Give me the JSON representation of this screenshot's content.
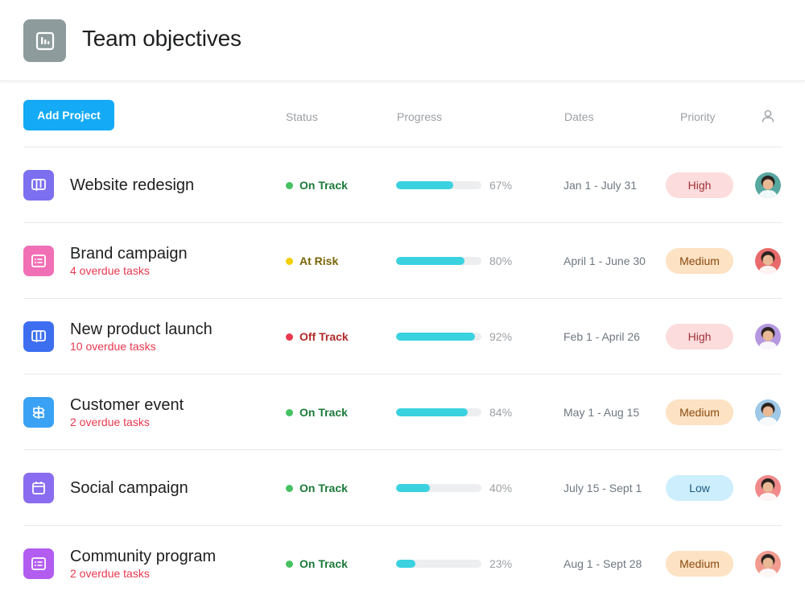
{
  "header": {
    "title": "Team objectives",
    "icon": "bar-chart-icon"
  },
  "toolbar": {
    "add_project_label": "Add Project",
    "columns": {
      "status": "Status",
      "progress": "Progress",
      "dates": "Dates",
      "priority": "Priority",
      "assignee_icon": "person-icon"
    }
  },
  "colors": {
    "accent": "#14aaf5",
    "on_track": "#2cb45f",
    "at_risk": "#f2cf00",
    "off_track": "#e8384f",
    "progress": "#3bd2e0"
  },
  "projects": [
    {
      "name": "Website redesign",
      "overdue": "",
      "icon": "board-icon",
      "icon_color": "#7c6ff0",
      "status": "On Track",
      "status_color": "#46c263",
      "status_text_color": "#1b7a3a",
      "progress": 0.67,
      "progress_label": "67%",
      "dates": "Jan 1 - July 31",
      "priority": "High",
      "priority_bg": "#fcdcdc",
      "priority_color": "#a0323a",
      "avatar_bg": "#57a8a1"
    },
    {
      "name": "Brand campaign",
      "overdue": "4 overdue tasks",
      "icon": "list-icon",
      "icon_color": "#f16fb5",
      "status": "At Risk",
      "status_color": "#f2cf00",
      "status_text_color": "#7a6404",
      "progress": 0.8,
      "progress_label": "80%",
      "dates": "April 1 - June 30",
      "priority": "Medium",
      "priority_bg": "#fde2c4",
      "priority_color": "#8a4a0f",
      "avatar_bg": "#e96a6a"
    },
    {
      "name": "New product launch",
      "overdue": "10 overdue tasks",
      "icon": "board-icon",
      "icon_color": "#3d6ef0",
      "status": "Off Track",
      "status_color": "#e8384f",
      "status_text_color": "#b12a2a",
      "progress": 0.92,
      "progress_label": "92%",
      "dates": "Feb 1 - April 26",
      "priority": "High",
      "priority_bg": "#fcdcdc",
      "priority_color": "#a0323a",
      "avatar_bg": "#b597e0"
    },
    {
      "name": "Customer event",
      "overdue": "2 overdue tasks",
      "icon": "signpost-icon",
      "icon_color": "#3aa2f5",
      "status": "On Track",
      "status_color": "#46c263",
      "status_text_color": "#1b7a3a",
      "progress": 0.84,
      "progress_label": "84%",
      "dates": "May 1 - Aug 15",
      "priority": "Medium",
      "priority_bg": "#fde2c4",
      "priority_color": "#8a4a0f",
      "avatar_bg": "#9ec8e6"
    },
    {
      "name": "Social campaign",
      "overdue": "",
      "icon": "calendar-icon",
      "icon_color": "#8a6cf0",
      "status": "On Track",
      "status_color": "#46c263",
      "status_text_color": "#1b7a3a",
      "progress": 0.4,
      "progress_label": "40%",
      "dates": "July 15 - Sept 1",
      "priority": "Low",
      "priority_bg": "#cdeefc",
      "priority_color": "#1a5a80",
      "avatar_bg": "#f08a8a"
    },
    {
      "name": "Community program",
      "overdue": "2 overdue tasks",
      "icon": "list-icon",
      "icon_color": "#b35cf0",
      "status": "On Track",
      "status_color": "#46c263",
      "status_text_color": "#1b7a3a",
      "progress": 0.23,
      "progress_label": "23%",
      "dates": "Aug 1 - Sept 28",
      "priority": "Medium",
      "priority_bg": "#fde2c4",
      "priority_color": "#8a4a0f",
      "avatar_bg": "#f29b8f"
    }
  ]
}
